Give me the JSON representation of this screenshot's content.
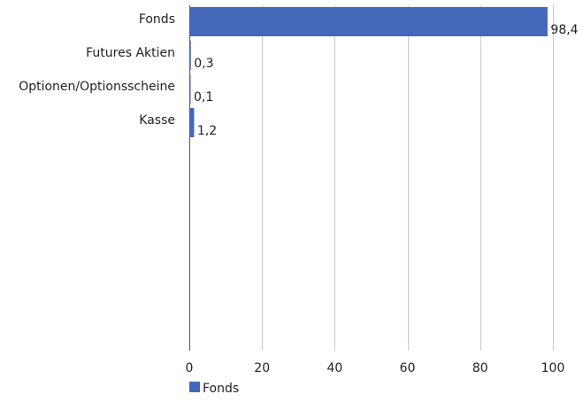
{
  "chart_data": {
    "type": "bar",
    "orientation": "horizontal",
    "categories": [
      "Fonds",
      "Futures Aktien",
      "Optionen/Optionsscheine",
      "Kasse"
    ],
    "series": [
      {
        "name": "Fonds",
        "values": [
          98.4,
          0.3,
          0.1,
          1.2
        ],
        "labels": [
          "98,4",
          "0,3",
          "0,1",
          "1,2"
        ]
      }
    ],
    "xlim": [
      0,
      100
    ],
    "xticks": [
      0,
      20,
      40,
      60,
      80,
      100
    ],
    "xtick_labels": [
      "0",
      "20",
      "40",
      "60",
      "80",
      "100"
    ],
    "grid": "vertical",
    "legend": {
      "position": "bottom-left",
      "entries": [
        "Fonds"
      ]
    },
    "colors": {
      "bar": "#4466BB",
      "grid": "#C8C8C8",
      "axis": "#555555",
      "text": "#222222"
    }
  }
}
